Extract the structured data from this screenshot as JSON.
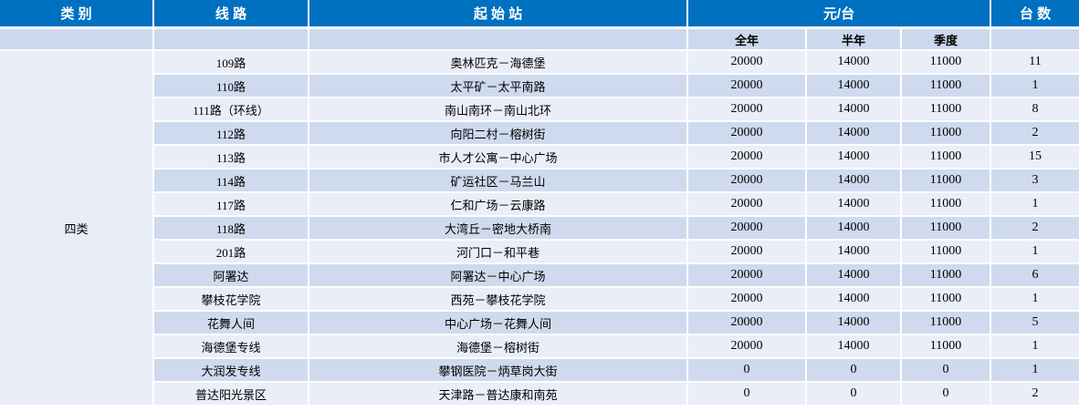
{
  "table": {
    "headers": {
      "category": "类 别",
      "route": "线 路",
      "stations": "起 始 站",
      "price_group": "元/台",
      "units": "台 数"
    },
    "sub_headers": {
      "full_year": "全年",
      "half_year": "半年",
      "quarter": "季度"
    },
    "category_label": "四类",
    "rows": [
      {
        "route": "109路",
        "stations": "奥林匹克－海德堡",
        "full_year": "20000",
        "half_year": "14000",
        "quarter": "11000",
        "units": "11"
      },
      {
        "route": "110路",
        "stations": "太平矿－太平南路",
        "full_year": "20000",
        "half_year": "14000",
        "quarter": "11000",
        "units": "1"
      },
      {
        "route": "111路（环线）",
        "stations": "南山南环－南山北环",
        "full_year": "20000",
        "half_year": "14000",
        "quarter": "11000",
        "units": "8"
      },
      {
        "route": "112路",
        "stations": "向阳二村－榕树街",
        "full_year": "20000",
        "half_year": "14000",
        "quarter": "11000",
        "units": "2"
      },
      {
        "route": "113路",
        "stations": "市人才公寓－中心广场",
        "full_year": "20000",
        "half_year": "14000",
        "quarter": "11000",
        "units": "15"
      },
      {
        "route": "114路",
        "stations": "矿运社区－马兰山",
        "full_year": "20000",
        "half_year": "14000",
        "quarter": "11000",
        "units": "3"
      },
      {
        "route": "117路",
        "stations": "仁和广场－云康路",
        "full_year": "20000",
        "half_year": "14000",
        "quarter": "11000",
        "units": "1"
      },
      {
        "route": "118路",
        "stations": "大湾丘－密地大桥南",
        "full_year": "20000",
        "half_year": "14000",
        "quarter": "11000",
        "units": "2"
      },
      {
        "route": "201路",
        "stations": "河门口－和平巷",
        "full_year": "20000",
        "half_year": "14000",
        "quarter": "11000",
        "units": "1"
      },
      {
        "route": "阿署达",
        "stations": "阿署达－中心广场",
        "full_year": "20000",
        "half_year": "14000",
        "quarter": "11000",
        "units": "6"
      },
      {
        "route": "攀枝花学院",
        "stations": "西苑－攀枝花学院",
        "full_year": "20000",
        "half_year": "14000",
        "quarter": "11000",
        "units": "1"
      },
      {
        "route": "花舞人间",
        "stations": "中心广场－花舞人间",
        "full_year": "20000",
        "half_year": "14000",
        "quarter": "11000",
        "units": "5"
      },
      {
        "route": "海德堡专线",
        "stations": "海德堡－榕树街",
        "full_year": "20000",
        "half_year": "14000",
        "quarter": "11000",
        "units": "1"
      },
      {
        "route": "大润发专线",
        "stations": "攀钢医院－炳草岗大街",
        "full_year": "0",
        "half_year": "0",
        "quarter": "0",
        "units": "1"
      },
      {
        "route": "普达阳光景区",
        "stations": "天津路－普达康和南苑",
        "full_year": "0",
        "half_year": "0",
        "quarter": "0",
        "units": "2"
      }
    ]
  },
  "colors": {
    "header_bg": "#0070C0",
    "header_text": "#FFFFFF",
    "subheader_bg": "#CCD8EE",
    "row_light": "#E9EEF8",
    "row_dark": "#CFDAEE",
    "category_bg": "#E8EDF7",
    "grid_border": "#FFFFFF"
  }
}
